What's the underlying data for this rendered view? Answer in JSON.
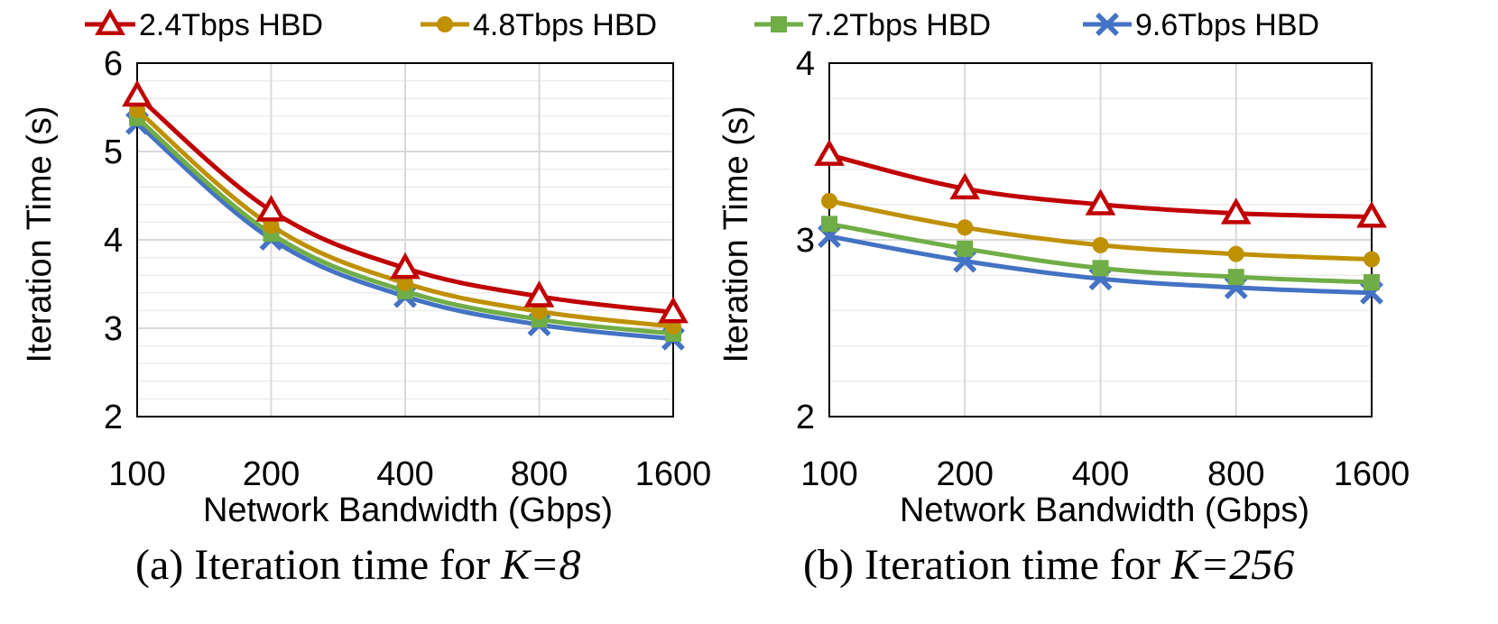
{
  "legend": [
    {
      "name": "2.4Tbps HBD",
      "color": "#c00000",
      "marker": "triangle"
    },
    {
      "name": "4.8Tbps HBD",
      "color": "#bf9000",
      "marker": "circle"
    },
    {
      "name": "7.2Tbps HBD",
      "color": "#70ad47",
      "marker": "square"
    },
    {
      "name": "9.6Tbps HBD",
      "color": "#4472c4",
      "marker": "x"
    }
  ],
  "chart_data": [
    {
      "type": "line",
      "title": "",
      "caption_prefix": "(a) Iteration time for ",
      "caption_italic": "K=8",
      "xlabel": "Network Bandwidth (Gbps)",
      "ylabel": "Iteration Time (s)",
      "categories": [
        "100",
        "200",
        "400",
        "800",
        "1600"
      ],
      "ylim": [
        2,
        6
      ],
      "yticks": [
        "2",
        "3",
        "4",
        "5",
        "6"
      ],
      "grid": true,
      "series": [
        {
          "name": "2.4Tbps HBD",
          "values": [
            5.63,
            4.33,
            3.68,
            3.36,
            3.18
          ]
        },
        {
          "name": "4.8Tbps HBD",
          "values": [
            5.47,
            4.16,
            3.51,
            3.19,
            3.02
          ]
        },
        {
          "name": "7.2Tbps HBD",
          "values": [
            5.38,
            4.07,
            3.42,
            3.1,
            2.94
          ]
        },
        {
          "name": "9.6Tbps HBD",
          "values": [
            5.32,
            4.01,
            3.36,
            3.04,
            2.88
          ]
        }
      ]
    },
    {
      "type": "line",
      "title": "",
      "caption_prefix": "(b) Iteration time for ",
      "caption_italic": "K=256",
      "xlabel": "Network Bandwidth (Gbps)",
      "ylabel": "Iteration Time (s)",
      "categories": [
        "100",
        "200",
        "400",
        "800",
        "1600"
      ],
      "ylim": [
        2,
        4
      ],
      "yticks": [
        "2",
        "3",
        "4"
      ],
      "grid": true,
      "series": [
        {
          "name": "2.4Tbps HBD",
          "values": [
            3.48,
            3.29,
            3.2,
            3.15,
            3.13
          ]
        },
        {
          "name": "4.8Tbps HBD",
          "values": [
            3.22,
            3.07,
            2.97,
            2.92,
            2.89
          ]
        },
        {
          "name": "7.2Tbps HBD",
          "values": [
            3.09,
            2.95,
            2.84,
            2.79,
            2.76
          ]
        },
        {
          "name": "9.6Tbps HBD",
          "values": [
            3.02,
            2.88,
            2.78,
            2.73,
            2.7
          ]
        }
      ]
    }
  ]
}
